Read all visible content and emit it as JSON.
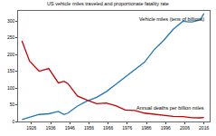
{
  "chart_data": {
    "type": "line",
    "title": "US vehicle miles traveled and proportionate fatality rate",
    "x": [
      1921,
      1925,
      1930,
      1935,
      1940,
      1943,
      1945,
      1950,
      1955,
      1960,
      1965,
      1970,
      1975,
      1980,
      1985,
      1990,
      1995,
      2000,
      2005,
      2008,
      2010,
      2014,
      2016
    ],
    "series": [
      {
        "name": "Vehicle miles (tens of billions)",
        "color": "#1f77b4",
        "values": [
          5.5,
          12,
          21,
          23,
          30,
          21,
          25,
          46,
          61,
          72,
          89,
          111,
          133,
          153,
          177,
          214,
          242,
          275,
          299,
          297,
          297,
          303,
          322
        ]
      },
      {
        "name": "Annual deaths per billion miles",
        "color": "#cc0000",
        "values": [
          241,
          180,
          150,
          158,
          115,
          120,
          113,
          76,
          64,
          53,
          55,
          47,
          34,
          33,
          25,
          21,
          17,
          15,
          14.6,
          12.6,
          11,
          10.8,
          11.8
        ]
      }
    ],
    "xlim": [
      1919,
      2019
    ],
    "xticks": [
      1926,
      1936,
      1946,
      1956,
      1966,
      1976,
      1986,
      1996,
      2006,
      2016
    ],
    "ylim": [
      0,
      330
    ],
    "yticks": [
      0,
      50,
      100,
      150,
      200,
      250,
      300
    ],
    "grid": false
  }
}
